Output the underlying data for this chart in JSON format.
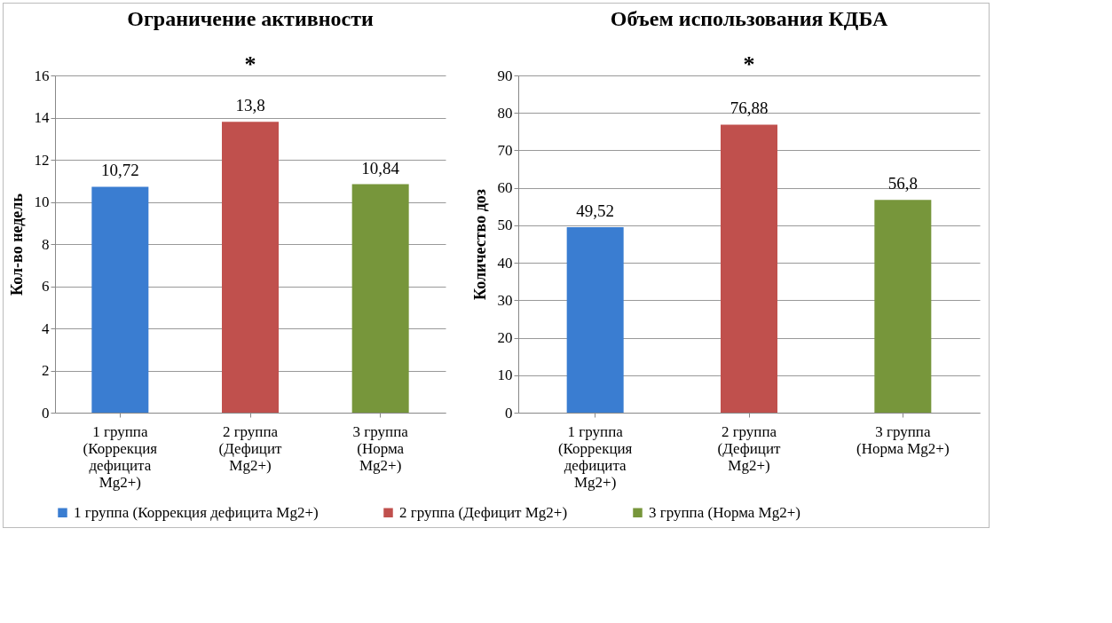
{
  "chart_data": [
    {
      "type": "bar",
      "title": "Ограничение активности",
      "ylabel": "Кол-во недель",
      "categories": [
        "1 группа (Коррекция дефицита Mg2+)",
        "2 группа (Дефицит Mg2+)",
        "3 группа (Норма Mg2+)"
      ],
      "series": [
        {
          "name": "1 группа (Коррекция дефицита Mg2+)",
          "color": "#3a7dd1",
          "values": [
            10.72,
            null,
            null
          ],
          "value_labels": [
            "10,72",
            null,
            null
          ]
        },
        {
          "name": "2 группа (Дефицит Mg2+)",
          "color": "#c0504d",
          "values": [
            null,
            13.8,
            null
          ],
          "value_labels": [
            null,
            "13,8",
            null
          ]
        },
        {
          "name": "3 группа (Норма Mg2+)",
          "color": "#77963b",
          "values": [
            null,
            null,
            10.84
          ],
          "value_labels": [
            null,
            null,
            "10,84"
          ]
        }
      ],
      "ylim": [
        0,
        16
      ],
      "yticks": [
        0,
        2,
        4,
        6,
        8,
        10,
        12,
        14,
        16
      ],
      "grid": "y",
      "legend": "bottom",
      "annotations": [
        "*"
      ]
    },
    {
      "type": "bar",
      "title": "Объем использования КДБА",
      "ylabel": "Количество доз",
      "categories": [
        "1 группа (Коррекция дефицита Mg2+)",
        "2 группа (Дефицит Mg2+)",
        "3 группа (Норма Mg2+)"
      ],
      "series": [
        {
          "name": "1 группа (Коррекция дефицита Mg2+)",
          "color": "#3a7dd1",
          "values": [
            49.52,
            null,
            null
          ],
          "value_labels": [
            "49,52",
            null,
            null
          ]
        },
        {
          "name": "2 группа (Дефицит Mg2+)",
          "color": "#c0504d",
          "values": [
            null,
            76.88,
            null
          ],
          "value_labels": [
            null,
            "76,88",
            null
          ]
        },
        {
          "name": "3 группа (Норма Mg2+)",
          "color": "#77963b",
          "values": [
            null,
            null,
            56.8
          ],
          "value_labels": [
            null,
            null,
            "56,8"
          ]
        }
      ],
      "ylim": [
        0,
        90
      ],
      "yticks": [
        0,
        10,
        20,
        30,
        40,
        50,
        60,
        70,
        80,
        90
      ],
      "grid": "y",
      "legend": "bottom",
      "annotations": [
        "*"
      ]
    }
  ]
}
